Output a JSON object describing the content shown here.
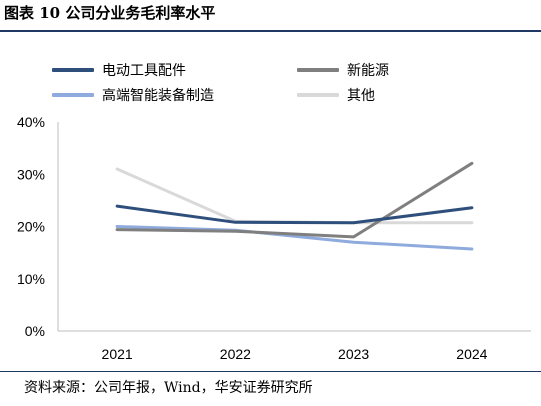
{
  "title": "图表 10 公司分业务毛利率水平",
  "source": "资料来源：公司年报，Wind，华安证券研究所",
  "chart_data": {
    "type": "line",
    "title": "",
    "xlabel": "",
    "ylabel": "",
    "categories": [
      "2021",
      "2022",
      "2023",
      "2024"
    ],
    "ylim": [
      0,
      40
    ],
    "yticks": [
      "0%",
      "10%",
      "20%",
      "30%",
      "40%"
    ],
    "grid": false,
    "legend_position": "top",
    "series": [
      {
        "name": "电动工具配件",
        "values": [
          23.9,
          20.8,
          20.7,
          23.6
        ],
        "color": "#2e4f7c"
      },
      {
        "name": "新能源",
        "values": [
          19.4,
          19.1,
          18.0,
          32.1
        ],
        "color": "#7f7f7f"
      },
      {
        "name": "高端智能装备制造",
        "values": [
          20.0,
          19.3,
          17.0,
          15.7
        ],
        "color": "#8faadc"
      },
      {
        "name": "其他",
        "values": [
          31.0,
          21.0,
          20.7,
          20.7
        ],
        "color": "#d9d9d9"
      }
    ]
  }
}
